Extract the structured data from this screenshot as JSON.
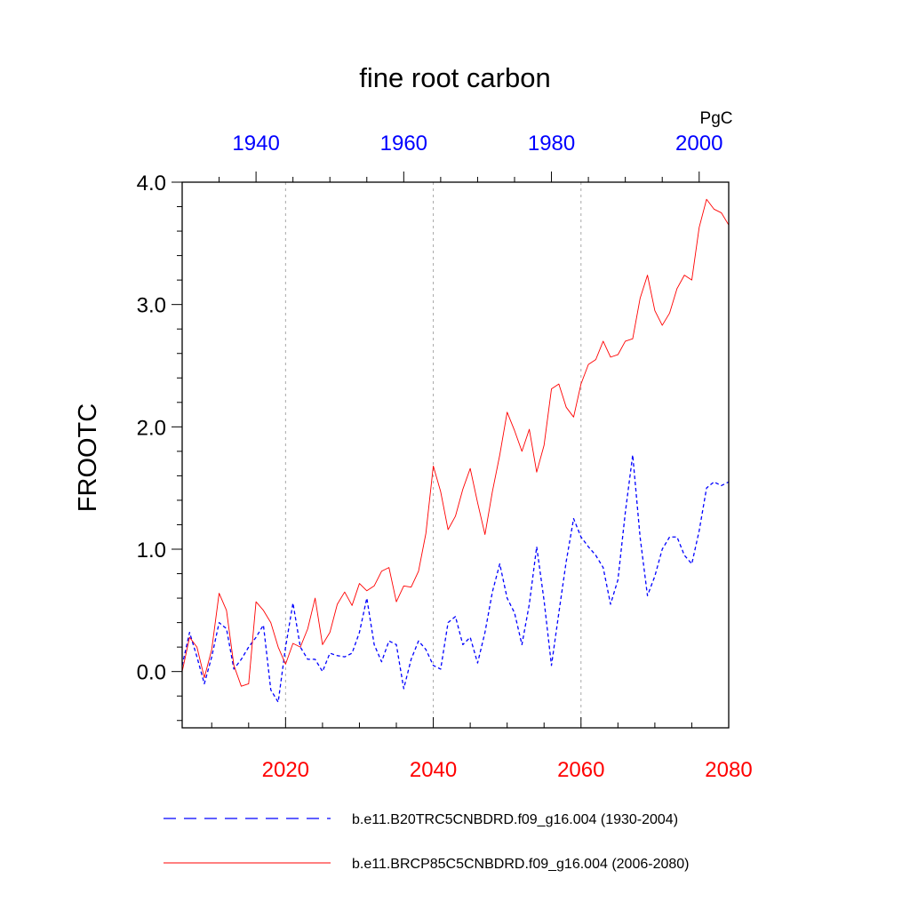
{
  "chart_data": {
    "type": "line",
    "title": "fine root carbon",
    "ylabel": "FROOTC",
    "units": "PgC",
    "ylim": [
      -0.46,
      4.0
    ],
    "yticks": [
      0.0,
      1.0,
      2.0,
      3.0,
      4.0
    ],
    "ytick_labels": [
      "0.0",
      "1.0",
      "2.0",
      "3.0",
      "4.0"
    ],
    "bottom_axis": {
      "range": [
        2006,
        2080
      ],
      "ticks": [
        2020,
        2040,
        2060,
        2080
      ],
      "tick_labels": [
        "2020",
        "2040",
        "2060",
        "2080"
      ],
      "color": "#ff0000"
    },
    "top_axis": {
      "range": [
        1930,
        2004
      ],
      "ticks": [
        1940,
        1960,
        1980,
        2000
      ],
      "tick_labels": [
        "1940",
        "1960",
        "1980",
        "2000"
      ],
      "color": "#0000ff"
    },
    "gridlines_x": [
      2020,
      2040,
      2060
    ],
    "series": [
      {
        "name": "b.e11.B20TRC5CNBDRD.f09_g16.004 (1930-2004)",
        "color": "#0000ff",
        "dash": "dashed",
        "x_start": 1930,
        "values": [
          0.05,
          0.32,
          0.12,
          -0.1,
          0.12,
          0.4,
          0.35,
          0.02,
          0.1,
          0.2,
          0.28,
          0.38,
          -0.15,
          -0.25,
          0.2,
          0.56,
          0.2,
          0.1,
          0.1,
          0.0,
          0.15,
          0.13,
          0.12,
          0.15,
          0.32,
          0.6,
          0.22,
          0.08,
          0.25,
          0.22,
          -0.14,
          0.1,
          0.25,
          0.18,
          0.05,
          0.02,
          0.4,
          0.45,
          0.22,
          0.28,
          0.07,
          0.32,
          0.65,
          0.88,
          0.6,
          0.48,
          0.22,
          0.55,
          1.02,
          0.58,
          0.05,
          0.48,
          0.9,
          1.25,
          1.1,
          1.02,
          0.95,
          0.85,
          0.55,
          0.75,
          1.3,
          1.77,
          1.1,
          0.62,
          0.78,
          1.0,
          1.1,
          1.1,
          0.95,
          0.88,
          1.15,
          1.5,
          1.55,
          1.52,
          1.55
        ]
      },
      {
        "name": "b.e11.BRCP85C5CNBDRD.f09_g16.004 (2006-2080)",
        "color": "#ff0000",
        "dash": "solid",
        "x_start": 2006,
        "values": [
          0.0,
          0.28,
          0.2,
          -0.05,
          0.18,
          0.64,
          0.5,
          0.05,
          -0.12,
          -0.1,
          0.57,
          0.5,
          0.4,
          0.2,
          0.06,
          0.23,
          0.2,
          0.35,
          0.6,
          0.22,
          0.32,
          0.55,
          0.65,
          0.54,
          0.72,
          0.66,
          0.7,
          0.82,
          0.85,
          0.57,
          0.7,
          0.69,
          0.82,
          1.13,
          1.68,
          1.47,
          1.16,
          1.27,
          1.49,
          1.66,
          1.38,
          1.12,
          1.47,
          1.77,
          2.12,
          1.97,
          1.8,
          1.98,
          1.63,
          1.85,
          2.31,
          2.35,
          2.16,
          2.08,
          2.35,
          2.51,
          2.55,
          2.7,
          2.57,
          2.59,
          2.7,
          2.72,
          3.05,
          3.24,
          2.95,
          2.83,
          2.93,
          3.13,
          3.24,
          3.2,
          3.63,
          3.86,
          3.78,
          3.75,
          3.65
        ]
      }
    ]
  }
}
